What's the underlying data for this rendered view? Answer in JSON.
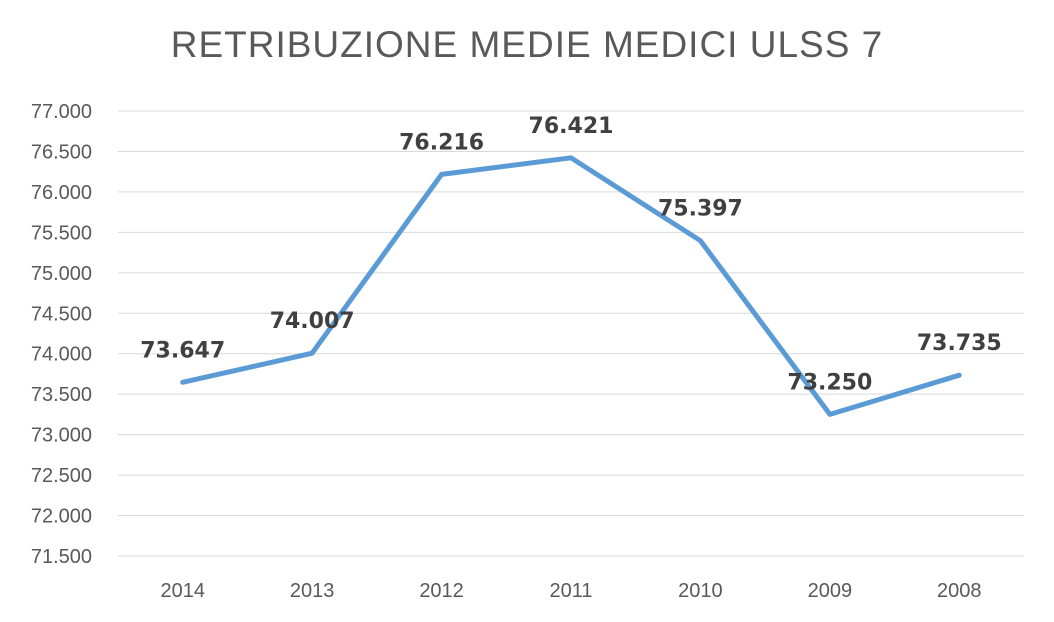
{
  "chart_data": {
    "type": "line",
    "title": "RETRIBUZIONE MEDIE MEDICI ULSS 7",
    "categories": [
      "2014",
      "2013",
      "2012",
      "2011",
      "2010",
      "2009",
      "2008"
    ],
    "values": [
      73647,
      74007,
      76216,
      76421,
      75397,
      73250,
      73735
    ],
    "data_labels": [
      "73.647",
      "74.007",
      "76.216",
      "76.421",
      "75.397",
      "73.250",
      "73.735"
    ],
    "y_ticks": [
      "71.500",
      "72.000",
      "72.500",
      "73.000",
      "73.500",
      "74.000",
      "74.500",
      "75.000",
      "75.500",
      "76.000",
      "76.500",
      "77.000"
    ],
    "ylim": [
      71500,
      77000
    ],
    "grid": true,
    "legend": "none",
    "line_color": "#5B9BD5",
    "grid_color": "#D9D9D9"
  }
}
